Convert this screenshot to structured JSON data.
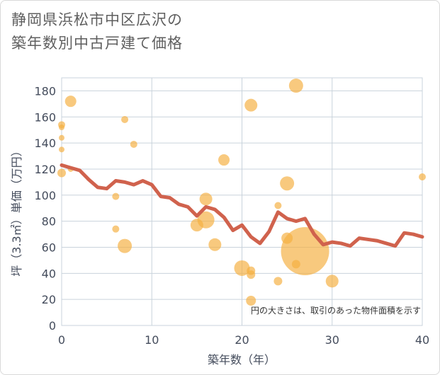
{
  "title_lines": [
    "静岡県浜松市中区広沢の",
    "築年数別中古戸建て価格"
  ],
  "note": "円の大きさは、取引のあった物件面積を示す",
  "chart_data": {
    "type": "scatter",
    "title": "静岡県浜松市中区広沢の築年数別中古戸建て価格",
    "xlabel": "築年数（年）",
    "ylabel": "坪（3.3㎡）単価（万円）",
    "xlim": [
      0,
      40
    ],
    "ylim": [
      0,
      190
    ],
    "x_ticks": [
      0,
      10,
      20,
      30,
      40
    ],
    "y_ticks": [
      0,
      20,
      40,
      60,
      80,
      100,
      120,
      140,
      160,
      180
    ],
    "grid": true,
    "colors": {
      "bubble": "#f5b041",
      "line": "#d0624d",
      "grid": "#c9d3dc",
      "plot_bg": "#ffffff"
    },
    "series": [
      {
        "kind": "bubble",
        "points": [
          {
            "x": 0,
            "y": 154,
            "size": 5
          },
          {
            "x": 0,
            "y": 152,
            "size": 4
          },
          {
            "x": 0,
            "y": 144,
            "size": 4
          },
          {
            "x": 0,
            "y": 135,
            "size": 4
          },
          {
            "x": 0,
            "y": 117,
            "size": 6
          },
          {
            "x": 1,
            "y": 172,
            "size": 8
          },
          {
            "x": 1,
            "y": 120,
            "size": 4
          },
          {
            "x": 6,
            "y": 99,
            "size": 5
          },
          {
            "x": 6,
            "y": 74,
            "size": 5
          },
          {
            "x": 7,
            "y": 158,
            "size": 5
          },
          {
            "x": 7,
            "y": 61,
            "size": 10
          },
          {
            "x": 8,
            "y": 139,
            "size": 5
          },
          {
            "x": 15,
            "y": 77,
            "size": 9
          },
          {
            "x": 16,
            "y": 97,
            "size": 9
          },
          {
            "x": 16,
            "y": 81,
            "size": 12
          },
          {
            "x": 17,
            "y": 62,
            "size": 9
          },
          {
            "x": 18,
            "y": 127,
            "size": 8
          },
          {
            "x": 20,
            "y": 44,
            "size": 11
          },
          {
            "x": 21,
            "y": 169,
            "size": 9
          },
          {
            "x": 21,
            "y": 42,
            "size": 6
          },
          {
            "x": 21,
            "y": 39,
            "size": 6
          },
          {
            "x": 21,
            "y": 19,
            "size": 7
          },
          {
            "x": 24,
            "y": 92,
            "size": 5
          },
          {
            "x": 24,
            "y": 34,
            "size": 6
          },
          {
            "x": 25,
            "y": 109,
            "size": 10
          },
          {
            "x": 25,
            "y": 67,
            "size": 8
          },
          {
            "x": 26,
            "y": 184,
            "size": 10
          },
          {
            "x": 26,
            "y": 47,
            "size": 6
          },
          {
            "x": 27,
            "y": 57,
            "size": 34
          },
          {
            "x": 30,
            "y": 34,
            "size": 9
          },
          {
            "x": 40,
            "y": 114,
            "size": 5
          }
        ]
      },
      {
        "kind": "line",
        "points": [
          {
            "x": 0,
            "y": 123
          },
          {
            "x": 1,
            "y": 121
          },
          {
            "x": 2,
            "y": 119
          },
          {
            "x": 3,
            "y": 112
          },
          {
            "x": 4,
            "y": 106
          },
          {
            "x": 5,
            "y": 105
          },
          {
            "x": 6,
            "y": 111
          },
          {
            "x": 7,
            "y": 110
          },
          {
            "x": 8,
            "y": 108
          },
          {
            "x": 9,
            "y": 111
          },
          {
            "x": 10,
            "y": 108
          },
          {
            "x": 11,
            "y": 99
          },
          {
            "x": 12,
            "y": 98
          },
          {
            "x": 13,
            "y": 93
          },
          {
            "x": 14,
            "y": 91
          },
          {
            "x": 15,
            "y": 84
          },
          {
            "x": 16,
            "y": 91
          },
          {
            "x": 17,
            "y": 89
          },
          {
            "x": 18,
            "y": 83
          },
          {
            "x": 19,
            "y": 73
          },
          {
            "x": 20,
            "y": 77
          },
          {
            "x": 21,
            "y": 68
          },
          {
            "x": 22,
            "y": 63
          },
          {
            "x": 23,
            "y": 72
          },
          {
            "x": 24,
            "y": 87
          },
          {
            "x": 25,
            "y": 82
          },
          {
            "x": 26,
            "y": 80
          },
          {
            "x": 27,
            "y": 82
          },
          {
            "x": 28,
            "y": 70
          },
          {
            "x": 29,
            "y": 62
          },
          {
            "x": 30,
            "y": 64
          },
          {
            "x": 31,
            "y": 63
          },
          {
            "x": 32,
            "y": 61
          },
          {
            "x": 33,
            "y": 67
          },
          {
            "x": 34,
            "y": 66
          },
          {
            "x": 35,
            "y": 65
          },
          {
            "x": 36,
            "y": 63
          },
          {
            "x": 37,
            "y": 61
          },
          {
            "x": 38,
            "y": 71
          },
          {
            "x": 39,
            "y": 70
          },
          {
            "x": 40,
            "y": 68
          }
        ]
      }
    ]
  }
}
